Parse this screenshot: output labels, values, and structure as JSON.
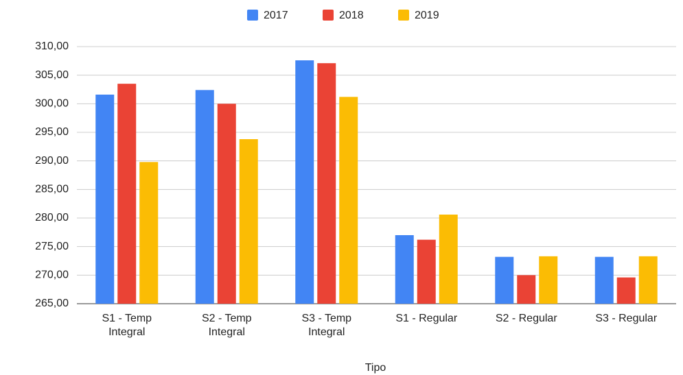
{
  "chart_data": {
    "type": "bar",
    "x_label": "Tipo",
    "categories": [
      "S1 - Temp Integral",
      "S2 - Temp Integral",
      "S3 - Temp Integral",
      "S1 - Regular",
      "S2 - Regular",
      "S3 - Regular"
    ],
    "series": [
      {
        "name": "2017",
        "color": "#4285f4",
        "values": [
          301.6,
          302.4,
          307.6,
          277.0,
          273.2,
          273.2
        ]
      },
      {
        "name": "2018",
        "color": "#ea4335",
        "values": [
          303.5,
          300.0,
          307.1,
          276.2,
          270.0,
          269.6
        ]
      },
      {
        "name": "2019",
        "color": "#fbbc04",
        "values": [
          289.8,
          293.8,
          301.2,
          280.6,
          273.3,
          273.3
        ]
      }
    ],
    "ylim": [
      265,
      310
    ],
    "yticks": [
      {
        "value": 265,
        "label": "265,00"
      },
      {
        "value": 270,
        "label": "270,00"
      },
      {
        "value": 275,
        "label": "275,00"
      },
      {
        "value": 280,
        "label": "280,00"
      },
      {
        "value": 285,
        "label": "285,00"
      },
      {
        "value": 290,
        "label": "290,00"
      },
      {
        "value": 295,
        "label": "295,00"
      },
      {
        "value": 300,
        "label": "300,00"
      },
      {
        "value": 305,
        "label": "305,00"
      },
      {
        "value": 310,
        "label": "310,00"
      }
    ],
    "grid": true,
    "legend": "top"
  }
}
